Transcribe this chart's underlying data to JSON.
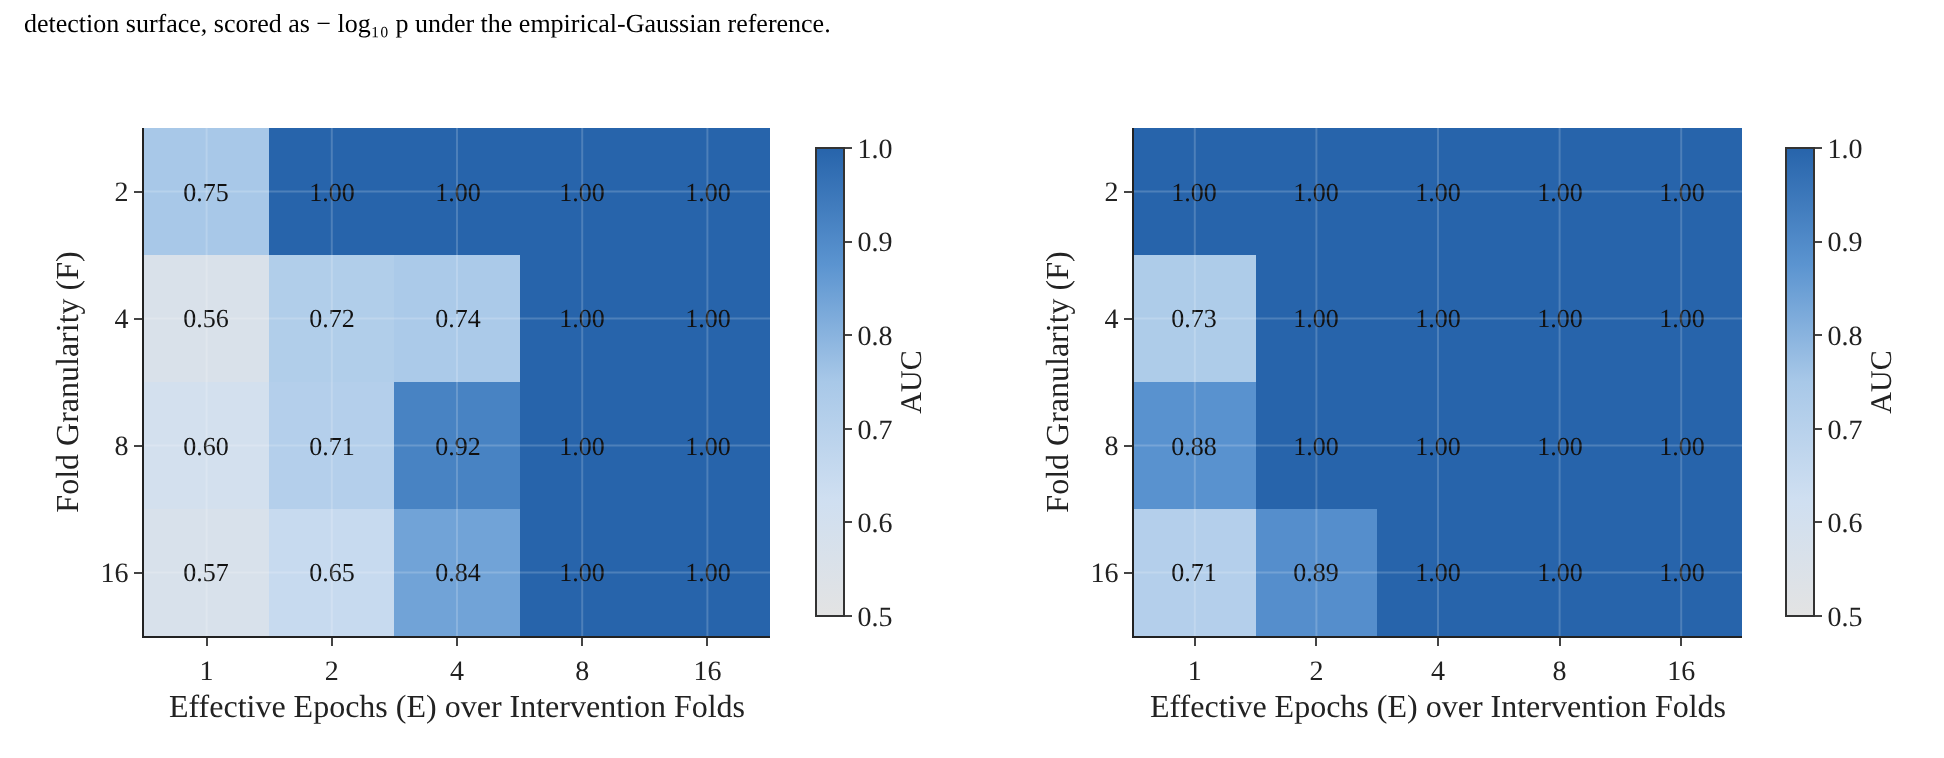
{
  "chart_data": [
    {
      "type": "heatmap",
      "annotations": [
        "detection surface, scored as − log₁₀ p under the empirical-Gaussian reference."
      ],
      "xlabel": "Effective Epochs (E) over Intervention Folds",
      "ylabel": "Fold Granularity (F)",
      "clabel": "AUC",
      "categories": [
        "1",
        "2",
        "4",
        "8",
        "16"
      ],
      "y_categories": [
        "2",
        "4",
        "8",
        "16"
      ],
      "cells": [
        [
          0.75,
          1.0,
          1.0,
          1.0,
          1.0
        ],
        [
          0.56,
          0.72,
          0.74,
          1.0,
          1.0
        ],
        [
          0.6,
          0.71,
          0.92,
          1.0,
          1.0
        ],
        [
          0.57,
          0.65,
          0.84,
          1.0,
          1.0
        ]
      ],
      "cell_labels": [
        [
          "0.75",
          "1.00",
          "1.00",
          "1.00",
          "1.00"
        ],
        [
          "0.56",
          "0.72",
          "0.74",
          "1.00",
          "1.00"
        ],
        [
          "0.60",
          "0.71",
          "0.92",
          "1.00",
          "1.00"
        ],
        [
          "0.57",
          "0.65",
          "0.84",
          "1.00",
          "1.00"
        ]
      ],
      "clim": [
        0.5,
        1.0
      ],
      "cticks": [
        0.5,
        0.6,
        0.7,
        0.8,
        0.9,
        {
          "value": 1.0,
          "label": "1.0"
        }
      ],
      "grid": true
    },
    {
      "type": "heatmap",
      "xlabel": "Effective Epochs (E) over Intervention Folds",
      "ylabel": "Fold Granularity (F)",
      "clabel": "AUC",
      "categories": [
        "1",
        "2",
        "4",
        "8",
        "16"
      ],
      "y_categories": [
        "2",
        "4",
        "8",
        "16"
      ],
      "cells": [
        [
          1.0,
          1.0,
          1.0,
          1.0,
          1.0
        ],
        [
          0.73,
          1.0,
          1.0,
          1.0,
          1.0
        ],
        [
          0.88,
          1.0,
          1.0,
          1.0,
          1.0
        ],
        [
          0.71,
          0.89,
          1.0,
          1.0,
          1.0
        ]
      ],
      "cell_labels": [
        [
          "1.00",
          "1.00",
          "1.00",
          "1.00",
          "1.00"
        ],
        [
          "0.73",
          "1.00",
          "1.00",
          "1.00",
          "1.00"
        ],
        [
          "0.88",
          "1.00",
          "1.00",
          "1.00",
          "1.00"
        ],
        [
          "0.71",
          "0.89",
          "1.00",
          "1.00",
          "1.00"
        ]
      ],
      "clim": [
        0.5,
        1.0
      ],
      "cticks": [
        0.5,
        0.6,
        0.7,
        0.8,
        0.9,
        {
          "value": 1.0,
          "label": "1.0"
        }
      ],
      "grid": true
    }
  ]
}
